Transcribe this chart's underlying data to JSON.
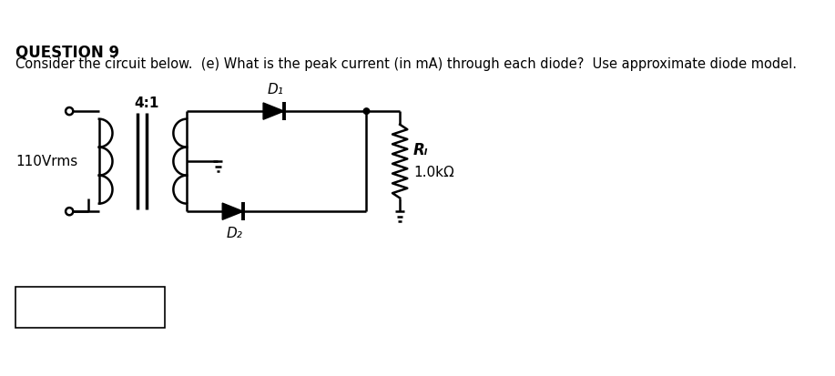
{
  "title": "QUESTION 9",
  "question_text": "Consider the circuit below.  (e) What is the peak current (in mA) through each diode?  Use approximate diode model.",
  "label_voltage": "110Vrms",
  "label_ratio": "4:1",
  "label_d1": "D₁",
  "label_d2": "D₂",
  "label_rl": "Rₗ",
  "label_resistance": "1.0kΩ",
  "bg_color": "#ffffff",
  "line_color": "#000000",
  "lw": 1.8,
  "font_size_title": 12,
  "font_size_question": 10.5,
  "font_size_labels": 11
}
